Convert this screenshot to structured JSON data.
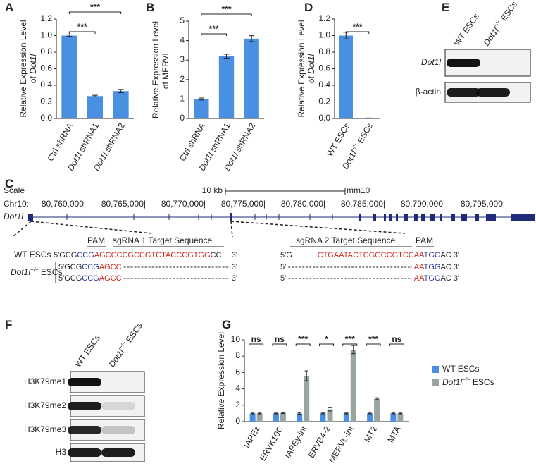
{
  "panel_labels": [
    "A",
    "B",
    "D",
    "E",
    "C",
    "F",
    "G"
  ],
  "chart_data": [
    {
      "type": "bar",
      "ylabel": [
        "Relative Expression Level",
        "of Dot1l"
      ],
      "categories": [
        "Ctrl shRNA",
        "Dot1l shRNA1",
        "Dot1l shRNA2"
      ],
      "values": [
        1.0,
        0.27,
        0.33
      ],
      "errors": [
        0.01,
        0.01,
        0.02
      ],
      "color": "#4a90e2",
      "ylim": [
        0,
        1.2
      ],
      "yticks": [
        {
          "value": 0,
          "label": "0.0"
        },
        {
          "value": 0.2,
          "label": "0.2"
        },
        {
          "value": 0.4,
          "label": "0.4"
        },
        {
          "value": 0.6,
          "label": "0.6"
        },
        {
          "value": 0.8,
          "label": "0.8"
        },
        {
          "value": 1,
          "label": "1.0"
        },
        {
          "value": 1.2,
          "label": "1.2"
        }
      ],
      "annotations": [
        {
          "label": "***",
          "pair": [
            0,
            1
          ]
        },
        {
          "label": "***",
          "pair": [
            0,
            2
          ]
        }
      ]
    },
    {
      "type": "bar",
      "ylabel": [
        "Relative Expression Level",
        "of MERVL"
      ],
      "categories": [
        "Ctrl shRNA",
        "Dot1l shRNA1",
        "Dot1l shRNA2"
      ],
      "values": [
        1.0,
        3.2,
        4.1
      ],
      "errors": [
        0.05,
        0.1,
        0.15
      ],
      "color": "#4a90e2",
      "ylim": [
        0,
        5
      ],
      "yticks": [
        0,
        1,
        2,
        3,
        4,
        5
      ],
      "annotations": [
        {
          "label": "***",
          "pair": [
            0,
            1
          ]
        },
        {
          "label": "***",
          "pair": [
            0,
            2
          ]
        }
      ]
    },
    {
      "type": "bar",
      "ylabel": [
        "Relative Expression Level",
        "of Dot1l"
      ],
      "categories": [
        "WT ESCs",
        "Dot1l−/− ESCs"
      ],
      "values": [
        1.0,
        0.005
      ],
      "errors": [
        0.04,
        0
      ],
      "color": "#4a90e2",
      "ylim": [
        0,
        1.2
      ],
      "yticks": [
        {
          "value": 0,
          "label": "0.0"
        },
        {
          "value": 0.2,
          "label": "0.2"
        },
        {
          "value": 0.4,
          "label": "0.4"
        },
        {
          "value": 0.6,
          "label": "0.6"
        },
        {
          "value": 0.8,
          "label": "0.8"
        },
        {
          "value": 1,
          "label": "1.0"
        },
        {
          "value": 1.2,
          "label": "1.2"
        }
      ],
      "annotations": [
        {
          "label": "***",
          "pair": [
            0,
            1
          ]
        }
      ]
    },
    {
      "type": "bar",
      "ylabel": [
        "Relative Expression Level"
      ],
      "categories": [
        "IAPEz",
        "ERVK10C",
        "IAPEy-int",
        "ERVB4-2",
        "MERVL-int",
        "MT2",
        "MTA"
      ],
      "series": [
        {
          "name": "WT ESCs",
          "color": "#4a90e2",
          "values": [
            1,
            1,
            1,
            1,
            1,
            1,
            1
          ],
          "errors": [
            0.05,
            0.05,
            0.1,
            0.05,
            0.05,
            0.05,
            0.05
          ]
        },
        {
          "name": "Dot1l−/− ESCs",
          "color": "#99a69f",
          "values": [
            1,
            1.05,
            5.6,
            1.5,
            8.8,
            2.8,
            1
          ],
          "errors": [
            0.05,
            0.05,
            0.6,
            0.2,
            0.5,
            0.12,
            0.05
          ]
        }
      ],
      "ylim": [
        0,
        10
      ],
      "yticks": [
        0,
        2,
        4,
        6,
        8,
        10
      ],
      "legend": "right",
      "annotations": [
        {
          "label": "ns",
          "category": 0
        },
        {
          "label": "ns",
          "category": 1
        },
        {
          "label": "***",
          "category": 2
        },
        {
          "label": "*",
          "category": 3
        },
        {
          "label": "***",
          "category": 4
        },
        {
          "label": "***",
          "category": 5
        },
        {
          "label": "ns",
          "category": 6
        }
      ]
    }
  ],
  "blot_E": {
    "columns": [
      "WT ESCs",
      "Dot1l−/− ESCs"
    ],
    "rows": [
      "Dot1l",
      "β-actin"
    ]
  },
  "blot_F": {
    "columns": [
      "WT ESCs",
      "Dot1l−/− ESCs"
    ],
    "rows": [
      "H3K79me1",
      "H3K79me2",
      "H3K79me3",
      "H3"
    ]
  },
  "locus": {
    "scale": "Scale",
    "scale_bar": "10 kb",
    "assembly": "mm10",
    "chromosome": "Chr10:",
    "coordinates": [
      "80,760,000|",
      "80,765,000|",
      "80,770,000|",
      "80,775,000|",
      "80,780,000|",
      "80,785,000|",
      "80,790,000|",
      "80,795,000|"
    ],
    "gene": "Dot1l"
  },
  "sequences": [
    {
      "pam": "PAM",
      "target": "sgRNA 1 Target Sequence",
      "groups": [
        {
          "label": "WT ESCs",
          "rows": [
            {
              "head": [
                {
                  "text": "5'GCG",
                  "color": "#222222"
                },
                {
                  "text": "CCG",
                  "color": "#2b3a9a"
                },
                {
                  "text": "AGCCCCGCCGTCTACCCGTGG",
                  "color": "#d4261c"
                },
                {
                  "text": "CC",
                  "color": "#222222"
                }
              ],
              "tail": [
                {
                  "text": "3'",
                  "color": "#222222"
                }
              ]
            }
          ]
        },
        {
          "label": "Dot1l−/− ESCs",
          "rows": [
            {
              "head": [
                {
                  "text": "5'GCG",
                  "color": "#222222"
                },
                {
                  "text": "CCG",
                  "color": "#2b3a9a"
                },
                {
                  "text": "AGCC",
                  "color": "#d4261c"
                }
              ],
              "tail": [
                {
                  "text": "3'",
                  "color": "#222222"
                }
              ]
            },
            {
              "head": [
                {
                  "text": "5'GCG",
                  "color": "#222222"
                },
                {
                  "text": "CCG",
                  "color": "#2b3a9a"
                },
                {
                  "text": "AGCC",
                  "color": "#d4261c"
                }
              ],
              "tail": [
                {
                  "text": "3'",
                  "color": "#222222"
                }
              ]
            }
          ]
        }
      ]
    },
    {
      "pam": "PAM",
      "target": "sgRNA 2 Target Sequence",
      "groups": [
        {
          "rows": [
            {
              "head": [
                {
                  "text": "5'G",
                  "color": "#222222"
                }
              ],
              "tail": [
                {
                  "text": "CTGAATACTCGGCCGTCCAA",
                  "color": "#d4261c"
                },
                {
                  "text": "TGG",
                  "color": "#2b3a9a"
                },
                {
                  "text": "AC 3'",
                  "color": "#222222"
                }
              ]
            }
          ]
        },
        {
          "rows": [
            {
              "head": [
                {
                  "text": "5'",
                  "color": "#222222"
                }
              ],
              "tail": [
                {
                  "text": "AA",
                  "color": "#d4261c"
                },
                {
                  "text": "TGG",
                  "color": "#2b3a9a"
                },
                {
                  "text": "AC 3'",
                  "color": "#222222"
                }
              ]
            },
            {
              "head": [
                {
                  "text": "5'",
                  "color": "#222222"
                }
              ],
              "tail": [
                {
                  "text": "AA",
                  "color": "#d4261c"
                },
                {
                  "text": "TGG",
                  "color": "#2b3a9a"
                },
                {
                  "text": "AC 3'",
                  "color": "#222222"
                }
              ]
            }
          ]
        }
      ]
    }
  ]
}
